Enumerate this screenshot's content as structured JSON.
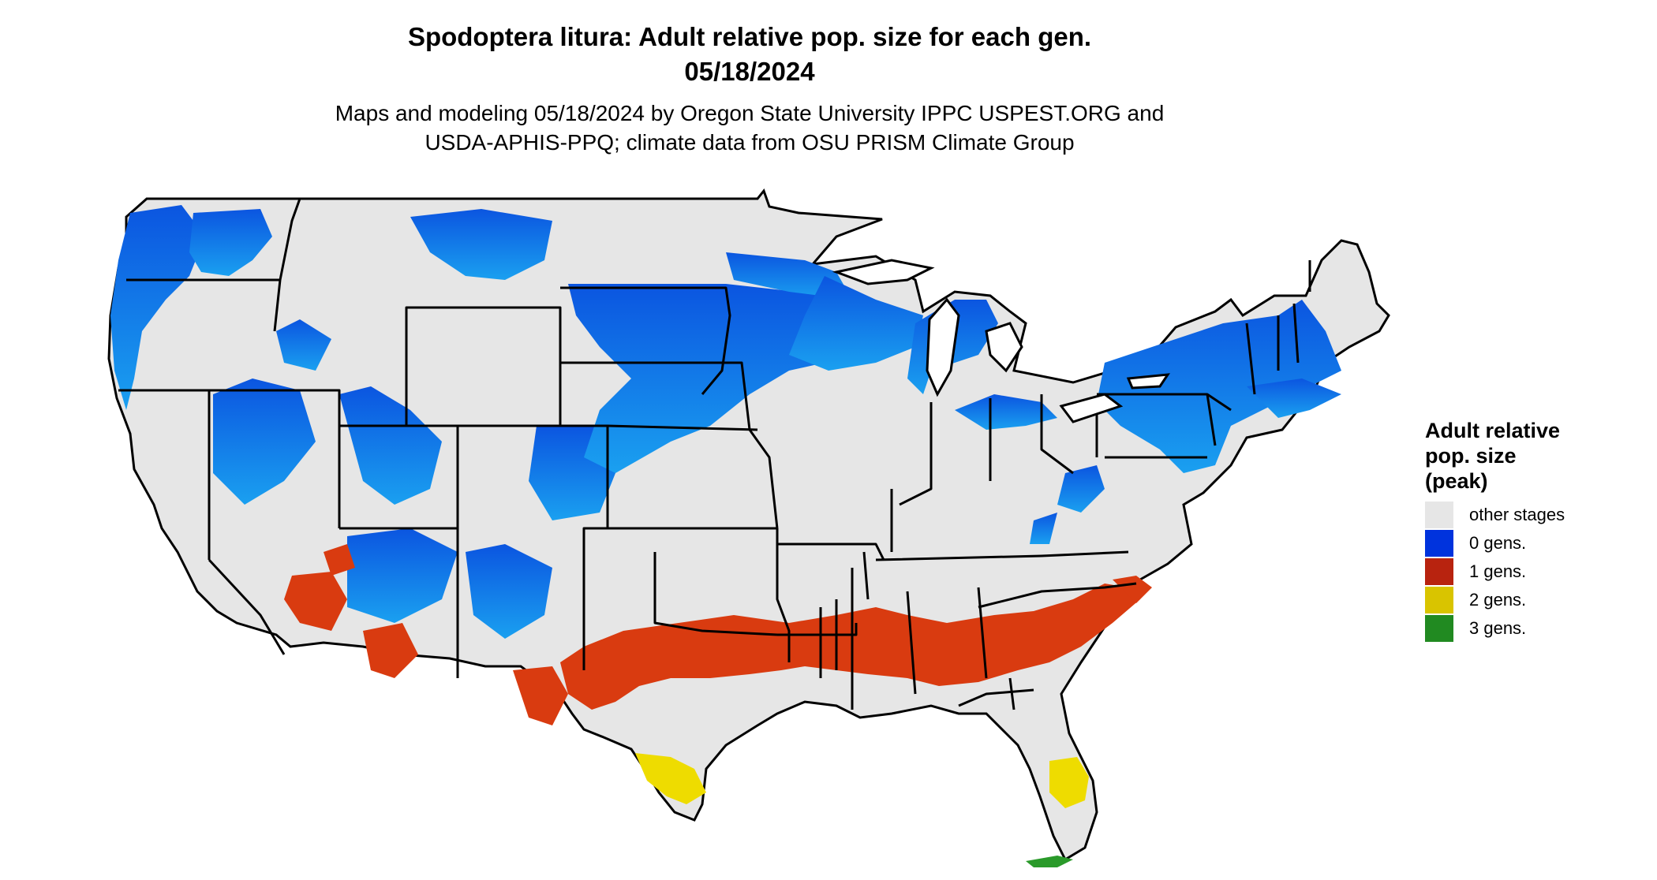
{
  "title_line1": "Spodoptera litura: Adult relative pop. size for each gen.",
  "title_line2": "05/18/2024",
  "subtitle_line1": "Maps and modeling 05/18/2024 by Oregon State University IPPC USPEST.ORG and",
  "subtitle_line2": "USDA-APHIS-PPQ; climate data from OSU PRISM Climate Group",
  "legend": {
    "title_line1": "Adult relative",
    "title_line2": "pop. size",
    "title_line3": "(peak)",
    "items": [
      {
        "label": "other stages",
        "color": "#e6e6e6"
      },
      {
        "label": "0 gens.",
        "color": "#0033dd"
      },
      {
        "label": "1 gens.",
        "color": "#b8230f"
      },
      {
        "label": "2 gens.",
        "color": "#d9c400"
      },
      {
        "label": "3 gens.",
        "color": "#218a21"
      }
    ]
  }
}
